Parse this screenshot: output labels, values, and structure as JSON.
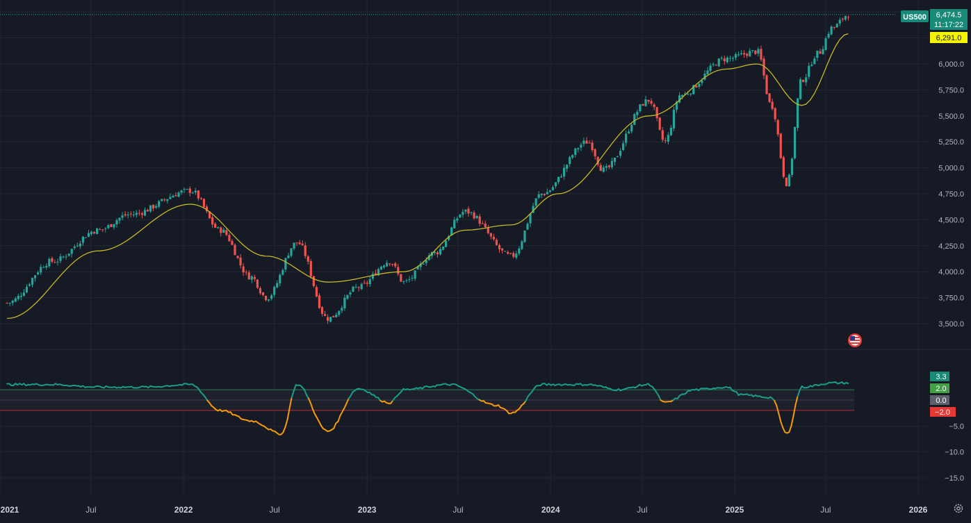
{
  "colors": {
    "background": "#161a25",
    "grid": "#232733",
    "text": "#b2b5be",
    "up": "#26a69a",
    "down": "#ef5350",
    "ma": "#c6b827",
    "osc_pos": "#1a9c88",
    "osc_neg": "#f59a0c",
    "line_upper": "#2e7d5a",
    "line_lower": "#b82a3a",
    "line_mid": "#3a3f4b",
    "badge_price": "#178a78",
    "badge_ma": "#f5f500",
    "badge_osc": "#178a78",
    "badge_upper": "#43a047",
    "badge_mid": "#5d606b",
    "badge_lower": "#e53935"
  },
  "price_pane": {
    "symbol": "US500",
    "last_price": "6,474.5",
    "countdown": "11:17:22",
    "ma_value": "6,291.0",
    "price_axis_labels": [
      "6,000.0",
      "5,750.0",
      "5,500.0",
      "5,250.0",
      "5,000.0",
      "4,750.0",
      "4,500.0",
      "4,250.0",
      "4,000.0",
      "3,750.0",
      "3,500.0"
    ],
    "flag_icon": "us-flag-icon"
  },
  "osc_pane": {
    "current_value": "3.3",
    "upper_level": "2.0",
    "mid_level": "0.0",
    "lower_level": "−2.0",
    "axis_labels": [
      "−5.0",
      "−10.0",
      "−15.0"
    ]
  },
  "time_axis": [
    "2021",
    "Jul",
    "2022",
    "Jul",
    "2023",
    "Jul",
    "2024",
    "Jul",
    "2025",
    "Jul",
    "2026"
  ],
  "chart_data": {
    "type": "line",
    "series": [
      {
        "name": "US500",
        "x": [
          "2021-01",
          "2021-04",
          "2021-07",
          "2021-09",
          "2022-01",
          "2022-03",
          "2022-05",
          "2022-06",
          "2022-08",
          "2022-10",
          "2022-12",
          "2023-02",
          "2023-03",
          "2023-05",
          "2023-07",
          "2023-10",
          "2023-12",
          "2024-03",
          "2024-04",
          "2024-07",
          "2024-08",
          "2024-09",
          "2024-12",
          "2025-02",
          "2025-03",
          "2025-04",
          "2025-05",
          "2025-06",
          "2025-07",
          "2025-08"
        ],
        "values": [
          3700,
          4100,
          4400,
          4550,
          4780,
          4400,
          3950,
          3750,
          4280,
          3550,
          3850,
          4100,
          3900,
          4180,
          4580,
          4150,
          4750,
          5250,
          4980,
          5650,
          5250,
          5700,
          6050,
          6120,
          5600,
          4850,
          5850,
          6100,
          6350,
          6474.5
        ]
      },
      {
        "name": "MA",
        "x": [
          "2021-01",
          "2021-07",
          "2022-01",
          "2022-06",
          "2022-10",
          "2023-03",
          "2023-07",
          "2023-10",
          "2024-01",
          "2024-07",
          "2024-12",
          "2025-02",
          "2025-05",
          "2025-08"
        ],
        "values": [
          3550,
          4200,
          4650,
          4150,
          3900,
          4000,
          4400,
          4450,
          4750,
          5500,
          5950,
          6000,
          5600,
          6291
        ]
      },
      {
        "name": "Oscillator",
        "x": [
          "2021-01",
          "2021-04",
          "2021-07",
          "2021-10",
          "2022-01",
          "2022-03",
          "2022-05",
          "2022-07",
          "2022-08",
          "2022-10",
          "2022-12",
          "2023-02",
          "2023-03",
          "2023-06",
          "2023-09",
          "2023-10",
          "2023-12",
          "2024-03",
          "2024-05",
          "2024-07",
          "2024-08",
          "2024-10",
          "2024-12",
          "2025-01",
          "2025-03",
          "2025-04",
          "2025-05",
          "2025-07",
          "2025-08"
        ],
        "values": [
          3,
          3,
          2.5,
          2.5,
          3,
          -2,
          -4,
          -6.5,
          3,
          -6,
          2.2,
          -0.5,
          2,
          3,
          -1,
          -2.5,
          3,
          3,
          2,
          3,
          -0.5,
          2,
          2.5,
          1,
          0.5,
          -6.5,
          2.5,
          3.3,
          3.3
        ]
      }
    ],
    "price_ylim": [
      3500,
      6500
    ],
    "osc_ylim": [
      -15,
      3.5
    ],
    "levels": [
      2,
      0,
      -2
    ],
    "grid": true
  }
}
